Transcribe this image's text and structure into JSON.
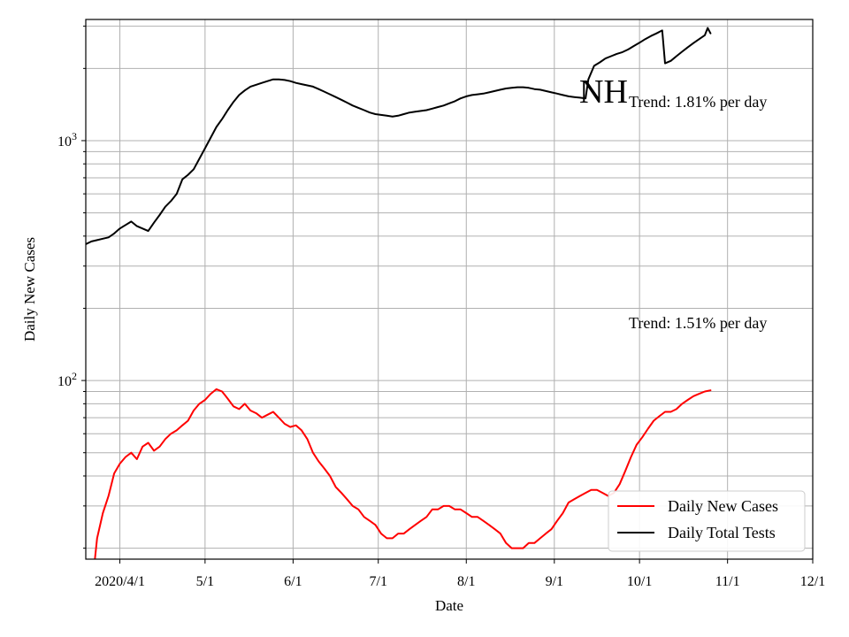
{
  "chart_data": {
    "type": "line",
    "title": "NH",
    "xlabel": "Date",
    "ylabel": "Daily New Cases",
    "yscale": "log",
    "ylim": [
      18,
      3200
    ],
    "xlim": [
      "2020-03-20",
      "2020-12-01"
    ],
    "grid": true,
    "legend_position": "lower-right",
    "x_ticks": [
      {
        "date": "2020-04-01",
        "label": "2020/4/1"
      },
      {
        "date": "2020-05-01",
        "label": "5/1"
      },
      {
        "date": "2020-06-01",
        "label": "6/1"
      },
      {
        "date": "2020-07-01",
        "label": "7/1"
      },
      {
        "date": "2020-08-01",
        "label": "8/1"
      },
      {
        "date": "2020-09-01",
        "label": "9/1"
      },
      {
        "date": "2020-10-01",
        "label": "10/1"
      },
      {
        "date": "2020-11-01",
        "label": "11/1"
      },
      {
        "date": "2020-12-01",
        "label": "12/1"
      }
    ],
    "y_ticks": [
      {
        "value": 100,
        "label_base": "10",
        "label_exp": "2"
      },
      {
        "value": 1000,
        "label_base": "10",
        "label_exp": "3"
      }
    ],
    "annotations": [
      {
        "text": "Trend: 1.81% per day",
        "series": "Daily Total Tests"
      },
      {
        "text": "Trend: 1.51% per day",
        "series": "Daily New Cases"
      }
    ],
    "series": [
      {
        "name": "Daily New Cases",
        "color": "#ff0000",
        "points": [
          [
            "2020-03-23",
            17
          ],
          [
            "2020-03-24",
            22
          ],
          [
            "2020-03-26",
            28
          ],
          [
            "2020-03-28",
            33
          ],
          [
            "2020-03-30",
            41
          ],
          [
            "2020-04-01",
            45
          ],
          [
            "2020-04-03",
            48
          ],
          [
            "2020-04-05",
            50
          ],
          [
            "2020-04-07",
            47
          ],
          [
            "2020-04-09",
            53
          ],
          [
            "2020-04-11",
            55
          ],
          [
            "2020-04-13",
            51
          ],
          [
            "2020-04-15",
            53
          ],
          [
            "2020-04-17",
            57
          ],
          [
            "2020-04-19",
            60
          ],
          [
            "2020-04-21",
            62
          ],
          [
            "2020-04-23",
            65
          ],
          [
            "2020-04-25",
            68
          ],
          [
            "2020-04-27",
            75
          ],
          [
            "2020-04-29",
            80
          ],
          [
            "2020-05-01",
            83
          ],
          [
            "2020-05-03",
            88
          ],
          [
            "2020-05-05",
            92
          ],
          [
            "2020-05-07",
            90
          ],
          [
            "2020-05-09",
            84
          ],
          [
            "2020-05-11",
            78
          ],
          [
            "2020-05-13",
            76
          ],
          [
            "2020-05-15",
            80
          ],
          [
            "2020-05-17",
            75
          ],
          [
            "2020-05-19",
            73
          ],
          [
            "2020-05-21",
            70
          ],
          [
            "2020-05-23",
            72
          ],
          [
            "2020-05-25",
            74
          ],
          [
            "2020-05-27",
            70
          ],
          [
            "2020-05-29",
            66
          ],
          [
            "2020-05-31",
            64
          ],
          [
            "2020-06-02",
            65
          ],
          [
            "2020-06-04",
            62
          ],
          [
            "2020-06-06",
            57
          ],
          [
            "2020-06-08",
            50
          ],
          [
            "2020-06-10",
            46
          ],
          [
            "2020-06-12",
            43
          ],
          [
            "2020-06-14",
            40
          ],
          [
            "2020-06-16",
            36
          ],
          [
            "2020-06-18",
            34
          ],
          [
            "2020-06-20",
            32
          ],
          [
            "2020-06-22",
            30
          ],
          [
            "2020-06-24",
            29
          ],
          [
            "2020-06-26",
            27
          ],
          [
            "2020-06-28",
            26
          ],
          [
            "2020-06-30",
            25
          ],
          [
            "2020-07-02",
            23
          ],
          [
            "2020-07-04",
            22
          ],
          [
            "2020-07-06",
            22
          ],
          [
            "2020-07-08",
            23
          ],
          [
            "2020-07-10",
            23
          ],
          [
            "2020-07-12",
            24
          ],
          [
            "2020-07-14",
            25
          ],
          [
            "2020-07-16",
            26
          ],
          [
            "2020-07-18",
            27
          ],
          [
            "2020-07-20",
            29
          ],
          [
            "2020-07-22",
            29
          ],
          [
            "2020-07-24",
            30
          ],
          [
            "2020-07-26",
            30
          ],
          [
            "2020-07-28",
            29
          ],
          [
            "2020-07-30",
            29
          ],
          [
            "2020-08-01",
            28
          ],
          [
            "2020-08-03",
            27
          ],
          [
            "2020-08-05",
            27
          ],
          [
            "2020-08-07",
            26
          ],
          [
            "2020-08-09",
            25
          ],
          [
            "2020-08-11",
            24
          ],
          [
            "2020-08-13",
            23
          ],
          [
            "2020-08-15",
            21
          ],
          [
            "2020-08-17",
            20
          ],
          [
            "2020-08-19",
            20
          ],
          [
            "2020-08-21",
            20
          ],
          [
            "2020-08-23",
            21
          ],
          [
            "2020-08-25",
            21
          ],
          [
            "2020-08-27",
            22
          ],
          [
            "2020-08-29",
            23
          ],
          [
            "2020-08-31",
            24
          ],
          [
            "2020-09-02",
            26
          ],
          [
            "2020-09-04",
            28
          ],
          [
            "2020-09-06",
            31
          ],
          [
            "2020-09-08",
            32
          ],
          [
            "2020-09-10",
            33
          ],
          [
            "2020-09-12",
            34
          ],
          [
            "2020-09-14",
            35
          ],
          [
            "2020-09-16",
            35
          ],
          [
            "2020-09-18",
            34
          ],
          [
            "2020-09-20",
            33
          ],
          [
            "2020-09-22",
            34
          ],
          [
            "2020-09-24",
            37
          ],
          [
            "2020-09-26",
            42
          ],
          [
            "2020-09-28",
            48
          ],
          [
            "2020-09-30",
            54
          ],
          [
            "2020-10-02",
            58
          ],
          [
            "2020-10-04",
            63
          ],
          [
            "2020-10-06",
            68
          ],
          [
            "2020-10-08",
            71
          ],
          [
            "2020-10-10",
            74
          ],
          [
            "2020-10-12",
            74
          ],
          [
            "2020-10-14",
            76
          ],
          [
            "2020-10-16",
            80
          ],
          [
            "2020-10-18",
            83
          ],
          [
            "2020-10-20",
            86
          ],
          [
            "2020-10-22",
            88
          ],
          [
            "2020-10-24",
            90
          ],
          [
            "2020-10-26",
            91
          ]
        ]
      },
      {
        "name": "Daily Total Tests",
        "color": "#000000",
        "points": [
          [
            "2020-03-20",
            370
          ],
          [
            "2020-03-22",
            380
          ],
          [
            "2020-03-24",
            385
          ],
          [
            "2020-03-26",
            390
          ],
          [
            "2020-03-28",
            395
          ],
          [
            "2020-03-30",
            410
          ],
          [
            "2020-04-01",
            430
          ],
          [
            "2020-04-03",
            445
          ],
          [
            "2020-04-05",
            460
          ],
          [
            "2020-04-07",
            440
          ],
          [
            "2020-04-09",
            430
          ],
          [
            "2020-04-11",
            420
          ],
          [
            "2020-04-13",
            455
          ],
          [
            "2020-04-15",
            490
          ],
          [
            "2020-04-17",
            530
          ],
          [
            "2020-04-19",
            560
          ],
          [
            "2020-04-21",
            600
          ],
          [
            "2020-04-23",
            690
          ],
          [
            "2020-04-25",
            720
          ],
          [
            "2020-04-27",
            760
          ],
          [
            "2020-04-29",
            840
          ],
          [
            "2020-05-01",
            930
          ],
          [
            "2020-05-03",
            1030
          ],
          [
            "2020-05-05",
            1140
          ],
          [
            "2020-05-07",
            1230
          ],
          [
            "2020-05-09",
            1340
          ],
          [
            "2020-05-11",
            1450
          ],
          [
            "2020-05-13",
            1550
          ],
          [
            "2020-05-15",
            1620
          ],
          [
            "2020-05-17",
            1680
          ],
          [
            "2020-05-19",
            1710
          ],
          [
            "2020-05-21",
            1740
          ],
          [
            "2020-05-23",
            1770
          ],
          [
            "2020-05-25",
            1800
          ],
          [
            "2020-05-27",
            1800
          ],
          [
            "2020-05-29",
            1790
          ],
          [
            "2020-05-31",
            1770
          ],
          [
            "2020-06-02",
            1740
          ],
          [
            "2020-06-04",
            1720
          ],
          [
            "2020-06-06",
            1700
          ],
          [
            "2020-06-08",
            1680
          ],
          [
            "2020-06-10",
            1640
          ],
          [
            "2020-06-12",
            1600
          ],
          [
            "2020-06-14",
            1560
          ],
          [
            "2020-06-16",
            1520
          ],
          [
            "2020-06-18",
            1480
          ],
          [
            "2020-06-20",
            1440
          ],
          [
            "2020-06-22",
            1400
          ],
          [
            "2020-06-24",
            1370
          ],
          [
            "2020-06-26",
            1340
          ],
          [
            "2020-06-28",
            1310
          ],
          [
            "2020-06-30",
            1290
          ],
          [
            "2020-07-02",
            1280
          ],
          [
            "2020-07-04",
            1270
          ],
          [
            "2020-07-06",
            1260
          ],
          [
            "2020-07-08",
            1270
          ],
          [
            "2020-07-10",
            1290
          ],
          [
            "2020-07-12",
            1310
          ],
          [
            "2020-07-14",
            1320
          ],
          [
            "2020-07-16",
            1330
          ],
          [
            "2020-07-18",
            1340
          ],
          [
            "2020-07-20",
            1360
          ],
          [
            "2020-07-22",
            1380
          ],
          [
            "2020-07-24",
            1400
          ],
          [
            "2020-07-26",
            1430
          ],
          [
            "2020-07-28",
            1460
          ],
          [
            "2020-07-30",
            1500
          ],
          [
            "2020-08-01",
            1530
          ],
          [
            "2020-08-03",
            1550
          ],
          [
            "2020-08-05",
            1560
          ],
          [
            "2020-08-07",
            1570
          ],
          [
            "2020-08-09",
            1590
          ],
          [
            "2020-08-11",
            1610
          ],
          [
            "2020-08-13",
            1630
          ],
          [
            "2020-08-15",
            1650
          ],
          [
            "2020-08-17",
            1660
          ],
          [
            "2020-08-19",
            1670
          ],
          [
            "2020-08-21",
            1670
          ],
          [
            "2020-08-23",
            1660
          ],
          [
            "2020-08-25",
            1640
          ],
          [
            "2020-08-27",
            1630
          ],
          [
            "2020-08-29",
            1610
          ],
          [
            "2020-08-31",
            1590
          ],
          [
            "2020-09-02",
            1570
          ],
          [
            "2020-09-04",
            1550
          ],
          [
            "2020-09-06",
            1530
          ],
          [
            "2020-09-08",
            1520
          ],
          [
            "2020-09-10",
            1510
          ],
          [
            "2020-09-12",
            1500
          ],
          [
            "2020-09-13",
            1800
          ],
          [
            "2020-09-15",
            2050
          ],
          [
            "2020-09-17",
            2120
          ],
          [
            "2020-09-19",
            2200
          ],
          [
            "2020-09-21",
            2250
          ],
          [
            "2020-09-23",
            2300
          ],
          [
            "2020-09-25",
            2340
          ],
          [
            "2020-09-27",
            2400
          ],
          [
            "2020-09-29",
            2480
          ],
          [
            "2020-10-01",
            2560
          ],
          [
            "2020-10-03",
            2650
          ],
          [
            "2020-10-05",
            2730
          ],
          [
            "2020-10-07",
            2800
          ],
          [
            "2020-10-09",
            2880
          ],
          [
            "2020-10-10",
            2100
          ],
          [
            "2020-10-12",
            2150
          ],
          [
            "2020-10-14",
            2250
          ],
          [
            "2020-10-16",
            2350
          ],
          [
            "2020-10-18",
            2450
          ],
          [
            "2020-10-20",
            2550
          ],
          [
            "2020-10-22",
            2650
          ],
          [
            "2020-10-24",
            2750
          ],
          [
            "2020-10-25",
            2950
          ],
          [
            "2020-10-26",
            2800
          ]
        ]
      }
    ]
  }
}
